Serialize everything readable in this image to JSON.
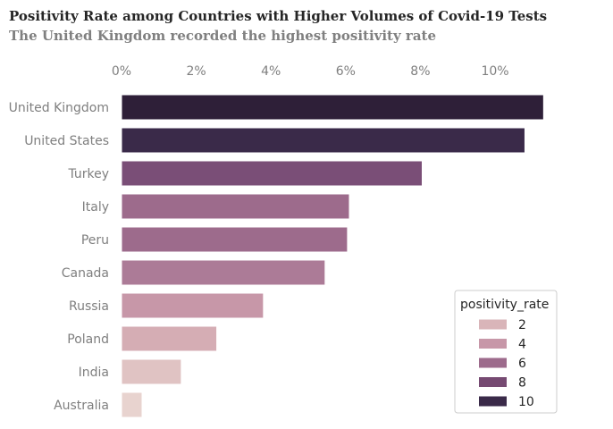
{
  "chart_data": {
    "type": "bar",
    "orientation": "horizontal",
    "title": "Positivity Rate among Countries with Higher Volumes of Covid-19 Tests",
    "subtitle": "The United Kingdom recorded the highest positivity rate",
    "categories": [
      "United Kingdom",
      "United States",
      "Turkey",
      "Italy",
      "Peru",
      "Canada",
      "Russia",
      "Poland",
      "India",
      "Australia"
    ],
    "values": [
      11.3,
      10.8,
      8.05,
      6.1,
      6.05,
      5.45,
      3.8,
      2.55,
      1.6,
      0.55
    ],
    "colors": [
      "#2e1f38",
      "#3a2a49",
      "#7a4e77",
      "#9d6b8c",
      "#9d6b8c",
      "#ac7b97",
      "#c797a8",
      "#d5adb4",
      "#e0c3c3",
      "#e8d3cf"
    ],
    "xlim": [
      0,
      12
    ],
    "xticks": [
      0,
      2,
      4,
      6,
      8,
      10
    ],
    "xtick_labels": [
      "0%",
      "2%",
      "4%",
      "6%",
      "8%",
      "10%"
    ],
    "xlabel": "",
    "ylabel": "",
    "x_axis_position": "top",
    "grid": false,
    "legend": {
      "title": "positivity_rate",
      "position": "lower-right",
      "items": [
        {
          "label": "2",
          "color": "#d9b5b9"
        },
        {
          "label": "4",
          "color": "#c797a8"
        },
        {
          "label": "6",
          "color": "#9d6b8c"
        },
        {
          "label": "8",
          "color": "#764a72"
        },
        {
          "label": "10",
          "color": "#3a2a49"
        }
      ]
    }
  }
}
